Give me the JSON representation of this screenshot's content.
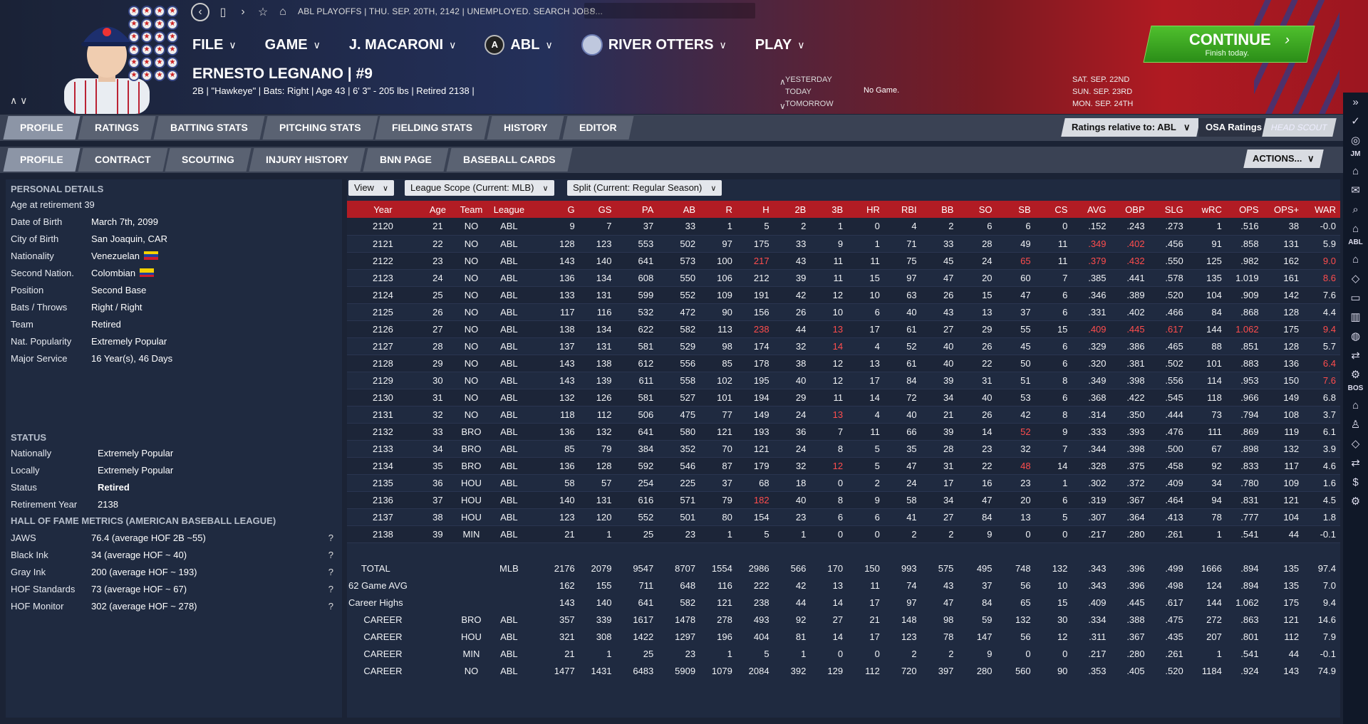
{
  "header": {
    "top_info": "ABL PLAYOFFS  |  THU. SEP. 20TH, 2142  |  UNEMPLOYED. SEARCH JOBS...",
    "menu": [
      {
        "label": "FILE"
      },
      {
        "label": "GAME"
      },
      {
        "label": "J. MACARONI"
      },
      {
        "label": "ABL"
      },
      {
        "label": "RIVER OTTERS"
      },
      {
        "label": "PLAY"
      }
    ],
    "player_name": "ERNESTO LEGNANO  |  #9",
    "player_info": "2B | \"Hawkeye\" | Bats: Right  |  Age 43  |  6' 3\" - 205 lbs  |  Retired 2138  |",
    "days": {
      "yesterday": "YESTERDAY",
      "today": "TODAY",
      "tomorrow": "TOMORROW",
      "today_value": "No Game."
    },
    "dates": [
      "SAT. SEP. 22ND",
      "SUN. SEP. 23RD",
      "MON. SEP. 24TH"
    ],
    "continue": {
      "label": "CONTINUE",
      "sub": "Finish today."
    },
    "logo_letter": "A"
  },
  "tabs_primary": [
    "PROFILE",
    "RATINGS",
    "BATTING STATS",
    "PITCHING STATS",
    "FIELDING STATS",
    "HISTORY",
    "EDITOR"
  ],
  "tabs_secondary": [
    "PROFILE",
    "CONTRACT",
    "SCOUTING",
    "INJURY HISTORY",
    "BNN PAGE",
    "BASEBALL CARDS"
  ],
  "ratings_relative": "Ratings relative to: ABL",
  "osa_ratings": "OSA Ratings",
  "head_scout": "HEAD SCOUT",
  "actions": "ACTIONS...",
  "personal": {
    "heading": "PERSONAL DETAILS",
    "age_at_retirement": "Age at retirement 39",
    "rows": [
      {
        "k": "Date of Birth",
        "v": "March 7th, 2099"
      },
      {
        "k": "City of Birth",
        "v": "San Joaquin, CAR"
      },
      {
        "k": "Nationality",
        "v": "Venezuelan"
      },
      {
        "k": "Second Nation.",
        "v": "Colombian"
      },
      {
        "k": "Position",
        "v": "Second Base"
      },
      {
        "k": "Bats / Throws",
        "v": "Right / Right"
      },
      {
        "k": "Team",
        "v": "Retired"
      },
      {
        "k": "Nat. Popularity",
        "v": "Extremely Popular"
      },
      {
        "k": "Major Service",
        "v": "16 Year(s), 46 Days"
      }
    ]
  },
  "status": {
    "heading": "STATUS",
    "rows": [
      {
        "k": "Nationally",
        "v": "Extremely Popular"
      },
      {
        "k": "Locally",
        "v": "Extremely Popular"
      },
      {
        "k": "Status",
        "v": "Retired"
      },
      {
        "k": "Retirement Year",
        "v": "2138"
      }
    ]
  },
  "hof": {
    "heading": "HALL OF FAME METRICS (AMERICAN BASEBALL LEAGUE)",
    "rows": [
      {
        "k": "JAWS",
        "v": "76.4 (average HOF 2B ~55)"
      },
      {
        "k": "Black Ink",
        "v": "34 (average HOF ~ 40)"
      },
      {
        "k": "Gray Ink",
        "v": "200 (average HOF ~ 193)"
      },
      {
        "k": "HOF Standards",
        "v": "73 (average HOF ~ 67)"
      },
      {
        "k": "HOF Monitor",
        "v": "302 (average HOF ~ 278)"
      }
    ],
    "help": "?"
  },
  "filters": {
    "view": "View",
    "scope": "League Scope (Current: MLB)",
    "split": "Split (Current: Regular Season)"
  },
  "stats": {
    "columns": [
      "Year",
      "Age",
      "Team",
      "League",
      "G",
      "GS",
      "PA",
      "AB",
      "R",
      "H",
      "2B",
      "3B",
      "HR",
      "RBI",
      "BB",
      "SO",
      "SB",
      "CS",
      "AVG",
      "OBP",
      "SLG",
      "wRC",
      "OPS",
      "OPS+",
      "WAR"
    ],
    "highlight_color": "#ff4d4d",
    "rows": [
      {
        "cells": [
          "2120",
          "21",
          "NO",
          "ABL",
          "9",
          "7",
          "37",
          "33",
          "1",
          "5",
          "2",
          "1",
          "0",
          "4",
          "2",
          "6",
          "6",
          "0",
          ".152",
          ".243",
          ".273",
          "1",
          ".516",
          "38",
          "-0.0"
        ],
        "hi": []
      },
      {
        "cells": [
          "2121",
          "22",
          "NO",
          "ABL",
          "128",
          "123",
          "553",
          "502",
          "97",
          "175",
          "33",
          "9",
          "1",
          "71",
          "33",
          "28",
          "49",
          "11",
          ".349",
          ".402",
          ".456",
          "91",
          ".858",
          "131",
          "5.9"
        ],
        "hi": [
          18,
          19
        ]
      },
      {
        "cells": [
          "2122",
          "23",
          "NO",
          "ABL",
          "143",
          "140",
          "641",
          "573",
          "100",
          "217",
          "43",
          "11",
          "11",
          "75",
          "45",
          "24",
          "65",
          "11",
          ".379",
          ".432",
          ".550",
          "125",
          ".982",
          "162",
          "9.0"
        ],
        "hi": [
          9,
          16,
          18,
          19,
          24
        ]
      },
      {
        "cells": [
          "2123",
          "24",
          "NO",
          "ABL",
          "136",
          "134",
          "608",
          "550",
          "106",
          "212",
          "39",
          "11",
          "15",
          "97",
          "47",
          "20",
          "60",
          "7",
          ".385",
          ".441",
          ".578",
          "135",
          "1.019",
          "161",
          "8.6"
        ],
        "hi": [
          24
        ]
      },
      {
        "cells": [
          "2124",
          "25",
          "NO",
          "ABL",
          "133",
          "131",
          "599",
          "552",
          "109",
          "191",
          "42",
          "12",
          "10",
          "63",
          "26",
          "15",
          "47",
          "6",
          ".346",
          ".389",
          ".520",
          "104",
          ".909",
          "142",
          "7.6"
        ],
        "hi": []
      },
      {
        "cells": [
          "2125",
          "26",
          "NO",
          "ABL",
          "117",
          "116",
          "532",
          "472",
          "90",
          "156",
          "26",
          "10",
          "6",
          "40",
          "43",
          "13",
          "37",
          "6",
          ".331",
          ".402",
          ".466",
          "84",
          ".868",
          "128",
          "4.4"
        ],
        "hi": []
      },
      {
        "cells": [
          "2126",
          "27",
          "NO",
          "ABL",
          "138",
          "134",
          "622",
          "582",
          "113",
          "238",
          "44",
          "13",
          "17",
          "61",
          "27",
          "29",
          "55",
          "15",
          ".409",
          ".445",
          ".617",
          "144",
          "1.062",
          "175",
          "9.4"
        ],
        "hi": [
          9,
          11,
          18,
          19,
          20,
          22,
          24
        ]
      },
      {
        "cells": [
          "2127",
          "28",
          "NO",
          "ABL",
          "137",
          "131",
          "581",
          "529",
          "98",
          "174",
          "32",
          "14",
          "4",
          "52",
          "40",
          "26",
          "45",
          "6",
          ".329",
          ".386",
          ".465",
          "88",
          ".851",
          "128",
          "5.7"
        ],
        "hi": [
          11
        ]
      },
      {
        "cells": [
          "2128",
          "29",
          "NO",
          "ABL",
          "143",
          "138",
          "612",
          "556",
          "85",
          "178",
          "38",
          "12",
          "13",
          "61",
          "40",
          "22",
          "50",
          "6",
          ".320",
          ".381",
          ".502",
          "101",
          ".883",
          "136",
          "6.4"
        ],
        "hi": [
          24
        ]
      },
      {
        "cells": [
          "2129",
          "30",
          "NO",
          "ABL",
          "143",
          "139",
          "611",
          "558",
          "102",
          "195",
          "40",
          "12",
          "17",
          "84",
          "39",
          "31",
          "51",
          "8",
          ".349",
          ".398",
          ".556",
          "114",
          ".953",
          "150",
          "7.6"
        ],
        "hi": [
          24
        ]
      },
      {
        "cells": [
          "2130",
          "31",
          "NO",
          "ABL",
          "132",
          "126",
          "581",
          "527",
          "101",
          "194",
          "29",
          "11",
          "14",
          "72",
          "34",
          "40",
          "53",
          "6",
          ".368",
          ".422",
          ".545",
          "118",
          ".966",
          "149",
          "6.8"
        ],
        "hi": []
      },
      {
        "cells": [
          "2131",
          "32",
          "NO",
          "ABL",
          "118",
          "112",
          "506",
          "475",
          "77",
          "149",
          "24",
          "13",
          "4",
          "40",
          "21",
          "26",
          "42",
          "8",
          ".314",
          ".350",
          ".444",
          "73",
          ".794",
          "108",
          "3.7"
        ],
        "hi": [
          11
        ]
      },
      {
        "cells": [
          "2132",
          "33",
          "BRO",
          "ABL",
          "136",
          "132",
          "641",
          "580",
          "121",
          "193",
          "36",
          "7",
          "11",
          "66",
          "39",
          "14",
          "52",
          "9",
          ".333",
          ".393",
          ".476",
          "111",
          ".869",
          "119",
          "6.1"
        ],
        "hi": [
          16
        ]
      },
      {
        "cells": [
          "2133",
          "34",
          "BRO",
          "ABL",
          "85",
          "79",
          "384",
          "352",
          "70",
          "121",
          "24",
          "8",
          "5",
          "35",
          "28",
          "23",
          "32",
          "7",
          ".344",
          ".398",
          ".500",
          "67",
          ".898",
          "132",
          "3.9"
        ],
        "hi": []
      },
      {
        "cells": [
          "2134",
          "35",
          "BRO",
          "ABL",
          "136",
          "128",
          "592",
          "546",
          "87",
          "179",
          "32",
          "12",
          "5",
          "47",
          "31",
          "22",
          "48",
          "14",
          ".328",
          ".375",
          ".458",
          "92",
          ".833",
          "117",
          "4.6"
        ],
        "hi": [
          11,
          16
        ]
      },
      {
        "cells": [
          "2135",
          "36",
          "HOU",
          "ABL",
          "58",
          "57",
          "254",
          "225",
          "37",
          "68",
          "18",
          "0",
          "2",
          "24",
          "17",
          "16",
          "23",
          "1",
          ".302",
          ".372",
          ".409",
          "34",
          ".780",
          "109",
          "1.6"
        ],
        "hi": []
      },
      {
        "cells": [
          "2136",
          "37",
          "HOU",
          "ABL",
          "140",
          "131",
          "616",
          "571",
          "79",
          "182",
          "40",
          "8",
          "9",
          "58",
          "34",
          "47",
          "20",
          "6",
          ".319",
          ".367",
          ".464",
          "94",
          ".831",
          "121",
          "4.5"
        ],
        "hi": [
          9
        ]
      },
      {
        "cells": [
          "2137",
          "38",
          "HOU",
          "ABL",
          "123",
          "120",
          "552",
          "501",
          "80",
          "154",
          "23",
          "6",
          "6",
          "41",
          "27",
          "84",
          "13",
          "5",
          ".307",
          ".364",
          ".413",
          "78",
          ".777",
          "104",
          "1.8"
        ],
        "hi": []
      },
      {
        "cells": [
          "2138",
          "39",
          "MIN",
          "ABL",
          "21",
          "1",
          "25",
          "23",
          "1",
          "5",
          "1",
          "0",
          "0",
          "2",
          "2",
          "9",
          "0",
          "0",
          ".217",
          ".280",
          ".261",
          "1",
          ".541",
          "44",
          "-0.1"
        ],
        "hi": []
      }
    ],
    "totals": [
      {
        "cells": [
          "TOTAL",
          "",
          "",
          "MLB",
          "2176",
          "2079",
          "9547",
          "8707",
          "1554",
          "2986",
          "566",
          "170",
          "150",
          "993",
          "575",
          "495",
          "748",
          "132",
          ".343",
          ".396",
          ".499",
          "1666",
          ".894",
          "135",
          "97.4"
        ]
      },
      {
        "cells": [
          "62 Game AVG",
          "",
          "",
          "",
          "162",
          "155",
          "711",
          "648",
          "116",
          "222",
          "42",
          "13",
          "11",
          "74",
          "43",
          "37",
          "56",
          "10",
          ".343",
          ".396",
          ".498",
          "124",
          ".894",
          "135",
          "7.0"
        ]
      },
      {
        "cells": [
          "Career Highs",
          "",
          "",
          "",
          "143",
          "140",
          "641",
          "582",
          "121",
          "238",
          "44",
          "14",
          "17",
          "97",
          "47",
          "84",
          "65",
          "15",
          ".409",
          ".445",
          ".617",
          "144",
          "1.062",
          "175",
          "9.4"
        ]
      },
      {
        "cells": [
          "CAREER",
          "",
          "BRO",
          "ABL",
          "357",
          "339",
          "1617",
          "1478",
          "278",
          "493",
          "92",
          "27",
          "21",
          "148",
          "98",
          "59",
          "132",
          "30",
          ".334",
          ".388",
          ".475",
          "272",
          ".863",
          "121",
          "14.6"
        ]
      },
      {
        "cells": [
          "CAREER",
          "",
          "HOU",
          "ABL",
          "321",
          "308",
          "1422",
          "1297",
          "196",
          "404",
          "81",
          "14",
          "17",
          "123",
          "78",
          "147",
          "56",
          "12",
          ".311",
          ".367",
          ".435",
          "207",
          ".801",
          "112",
          "7.9"
        ]
      },
      {
        "cells": [
          "CAREER",
          "",
          "MIN",
          "ABL",
          "21",
          "1",
          "25",
          "23",
          "1",
          "5",
          "1",
          "0",
          "0",
          "2",
          "2",
          "9",
          "0",
          "0",
          ".217",
          ".280",
          ".261",
          "1",
          ".541",
          "44",
          "-0.1"
        ]
      },
      {
        "cells": [
          "CAREER",
          "",
          "NO",
          "ABL",
          "1477",
          "1431",
          "6483",
          "5909",
          "1079",
          "2084",
          "392",
          "129",
          "112",
          "720",
          "397",
          "280",
          "560",
          "90",
          ".353",
          ".405",
          ".520",
          "1184",
          ".924",
          "143",
          "74.9"
        ]
      }
    ]
  },
  "right_sidebar": {
    "labels": [
      "JM",
      "ABL",
      "BOS"
    ]
  }
}
